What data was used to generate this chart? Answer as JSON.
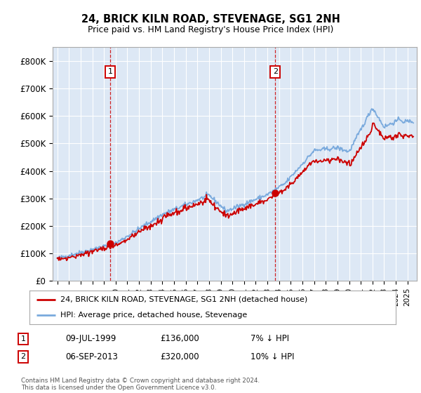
{
  "title": "24, BRICK KILN ROAD, STEVENAGE, SG1 2NH",
  "subtitle": "Price paid vs. HM Land Registry's House Price Index (HPI)",
  "hpi_color": "#7aaadd",
  "price_color": "#cc0000",
  "background_color": "#dde8f5",
  "ylim": [
    0,
    850000
  ],
  "yticks": [
    0,
    100000,
    200000,
    300000,
    400000,
    500000,
    600000,
    700000,
    800000
  ],
  "ytick_labels": [
    "£0",
    "£100K",
    "£200K",
    "£300K",
    "£400K",
    "£500K",
    "£600K",
    "£700K",
    "£800K"
  ],
  "xmin": 1994.6,
  "xmax": 2025.8,
  "sale1_x": 1999.52,
  "sale1_y": 136000,
  "sale2_x": 2013.67,
  "sale2_y": 320000,
  "legend_price_label": "24, BRICK KILN ROAD, STEVENAGE, SG1 2NH (detached house)",
  "legend_hpi_label": "HPI: Average price, detached house, Stevenage",
  "note1_label": "1",
  "note1_date": "09-JUL-1999",
  "note1_price": "£136,000",
  "note1_hpi": "7% ↓ HPI",
  "note2_label": "2",
  "note2_date": "06-SEP-2013",
  "note2_price": "£320,000",
  "note2_hpi": "10% ↓ HPI",
  "footer": "Contains HM Land Registry data © Crown copyright and database right 2024.\nThis data is licensed under the Open Government Licence v3.0."
}
